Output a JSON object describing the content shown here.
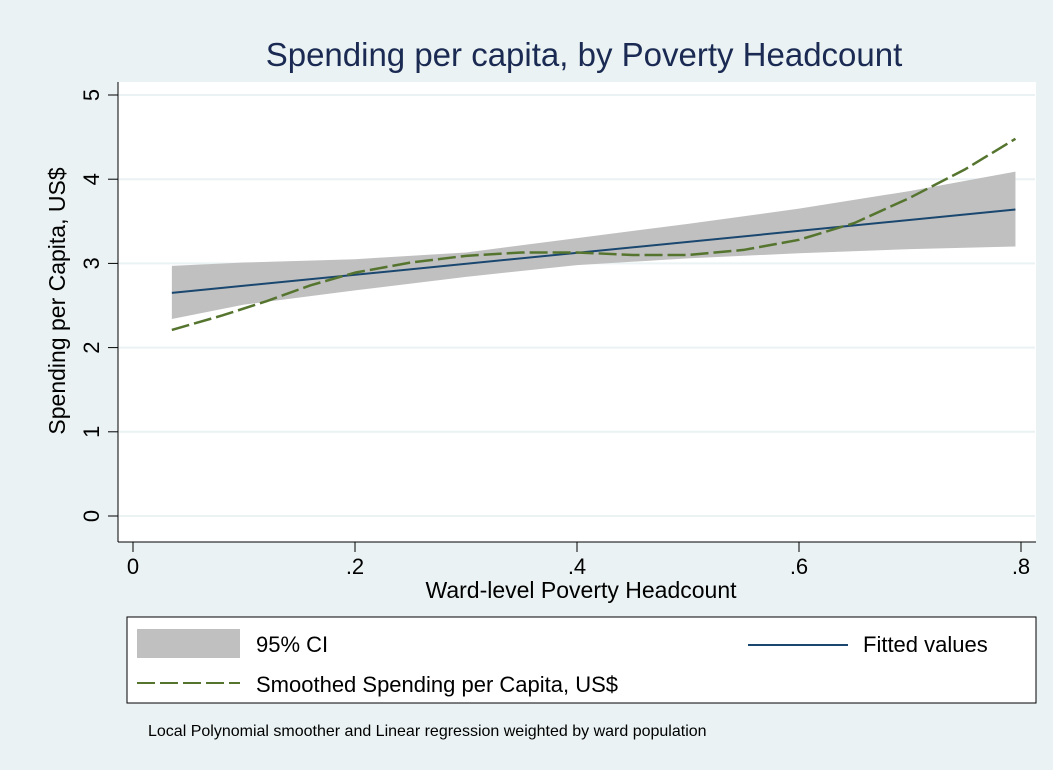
{
  "chart_data": {
    "type": "line",
    "title": "Spending per capita, by Poverty Headcount",
    "xlabel": "Ward-level Poverty Headcount",
    "ylabel": "Spending per Capita, US$",
    "xlim": [
      0,
      0.8
    ],
    "ylim": [
      0,
      5
    ],
    "xticks": [
      0,
      0.2,
      0.4,
      0.6,
      0.8
    ],
    "xtick_labels": [
      "0",
      ".2",
      ".4",
      ".6",
      ".8"
    ],
    "yticks": [
      0,
      1,
      2,
      3,
      4,
      5
    ],
    "ytick_labels": [
      "0",
      "1",
      "2",
      "3",
      "4",
      "5"
    ],
    "grid": true,
    "legend_position": "bottom",
    "note": "Local Polynomial smoother and Linear regression weighted by ward population",
    "colors": {
      "background": "#eaf2f3",
      "plot_background": "#ffffff",
      "ci_band": "#c0c0c0",
      "fitted": "#1a476f",
      "smoothed": "#55752f",
      "title": "#1a2a52",
      "grid": "#eaf2f3"
    },
    "series": [
      {
        "name": "95% CI",
        "kind": "band",
        "x": [
          0.035,
          0.1,
          0.2,
          0.3,
          0.4,
          0.5,
          0.6,
          0.7,
          0.795
        ],
        "lower": [
          2.34,
          2.51,
          2.68,
          2.84,
          2.98,
          3.06,
          3.12,
          3.17,
          3.2
        ],
        "upper": [
          2.97,
          3.01,
          3.05,
          3.13,
          3.3,
          3.47,
          3.65,
          3.86,
          4.09
        ]
      },
      {
        "name": "Fitted values",
        "kind": "line",
        "x": [
          0.035,
          0.795
        ],
        "y": [
          2.65,
          3.64
        ]
      },
      {
        "name": "Smoothed Spending per Capita, US$",
        "kind": "dashed-line",
        "x": [
          0.035,
          0.08,
          0.12,
          0.16,
          0.2,
          0.25,
          0.3,
          0.35,
          0.4,
          0.45,
          0.5,
          0.55,
          0.6,
          0.65,
          0.7,
          0.75,
          0.795
        ],
        "y": [
          2.21,
          2.38,
          2.55,
          2.74,
          2.89,
          3.01,
          3.09,
          3.13,
          3.13,
          3.1,
          3.1,
          3.16,
          3.28,
          3.48,
          3.78,
          4.12,
          4.48
        ]
      }
    ]
  }
}
